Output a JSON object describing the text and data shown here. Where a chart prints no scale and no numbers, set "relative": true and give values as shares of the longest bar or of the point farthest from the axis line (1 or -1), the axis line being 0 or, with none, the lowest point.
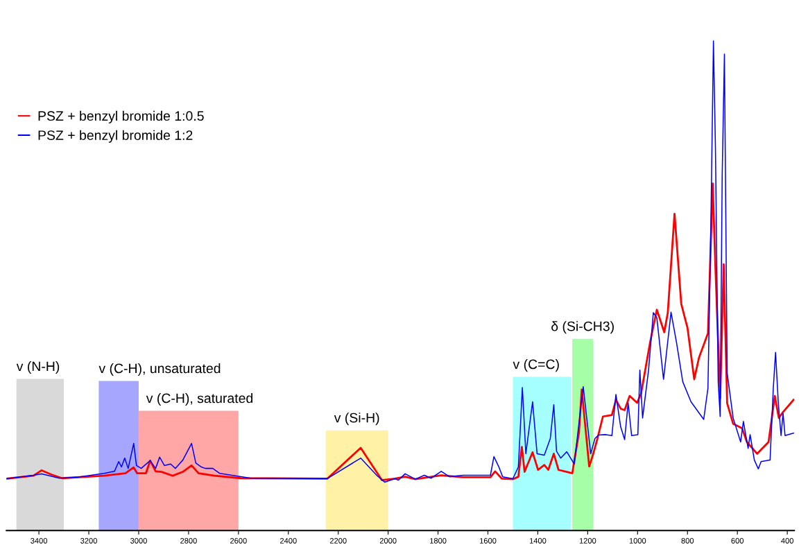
{
  "chart_data": {
    "type": "line",
    "relative": true,
    "xlim": [
      3530,
      372
    ],
    "xticks": [
      3400,
      3200,
      3000,
      2800,
      2600,
      2400,
      2200,
      2000,
      1800,
      1600,
      1400,
      1200,
      1000,
      800,
      600,
      400
    ],
    "grid": false,
    "legend": "top left",
    "marker": "none",
    "line_style": "solid",
    "bands": [
      {
        "axis": "x",
        "from": 3490,
        "to": 3300,
        "label": "v (N-H)",
        "color": "#d9d9d9"
      },
      {
        "axis": "x",
        "from": 3160,
        "to": 3000,
        "label": "v (C-H), unsaturated",
        "color": "#a6a6ff"
      },
      {
        "axis": "x",
        "from": 3000,
        "to": 2600,
        "label": "v (C-H), saturated",
        "color": "#ffa6a6"
      },
      {
        "axis": "x",
        "from": 2250,
        "to": 2000,
        "label": "v (Si-H)",
        "color": "#fff2a6"
      },
      {
        "axis": "x",
        "from": 1500,
        "to": 1268,
        "label": "v (C=C)",
        "color": "#a6ffff"
      },
      {
        "axis": "x",
        "from": 1262,
        "to": 1178,
        "label": "δ (Si-CH3)",
        "color": "#a6ffa6"
      }
    ],
    "series": [
      {
        "name": "PSZ + benzyl bromide 1:0.5",
        "color": "#ff0000",
        "x": [
          3530,
          3422,
          3389,
          3348,
          3307,
          3138,
          3053,
          3020,
          3006,
          2971,
          2954,
          2932,
          2908,
          2864,
          2823,
          2788,
          2760,
          2697,
          2591,
          2244,
          2110,
          2025,
          1973,
          1932,
          1891,
          1787,
          1699,
          1590,
          1571,
          1544,
          1500,
          1478,
          1464,
          1453,
          1421,
          1399,
          1374,
          1358,
          1336,
          1317,
          1284,
          1262,
          1235,
          1224,
          1194,
          1180,
          1161,
          1139,
          1103,
          1087,
          1068,
          1052,
          1032,
          1002,
          986,
          950,
          923,
          893,
          879,
          852,
          825,
          800,
          773,
          754,
          718,
          699,
          688,
          669,
          655,
          641,
          617,
          581,
          562,
          521,
          475,
          450,
          434,
          417,
          375
        ],
        "values": [
          0.106,
          0.112,
          0.123,
          0.114,
          0.107,
          0.112,
          0.117,
          0.129,
          0.117,
          0.117,
          0.143,
          0.121,
          0.12,
          0.112,
          0.12,
          0.133,
          0.117,
          0.112,
          0.107,
          0.106,
          0.169,
          0.103,
          0.106,
          0.11,
          0.105,
          0.113,
          0.109,
          0.109,
          0.121,
          0.106,
          0.105,
          0.11,
          0.171,
          0.12,
          0.16,
          0.124,
          0.134,
          0.124,
          0.157,
          0.124,
          0.12,
          0.117,
          0.2,
          0.288,
          0.131,
          0.153,
          0.188,
          0.233,
          0.236,
          0.267,
          0.249,
          0.246,
          0.275,
          0.261,
          0.28,
          0.384,
          0.451,
          0.405,
          0.445,
          0.647,
          0.463,
          0.414,
          0.309,
          0.353,
          0.403,
          0.709,
          0.537,
          0.27,
          0.544,
          0.26,
          0.218,
          0.209,
          0.181,
          0.157,
          0.181,
          0.275,
          0.23,
          0.242,
          0.267
        ]
      },
      {
        "name": "PSZ + benzyl bromide 1:2",
        "color": "#0000ff",
        "x": [
          3530,
          3422,
          3389,
          3318,
          3244,
          3138,
          3097,
          3080,
          3069,
          3056,
          3042,
          3020,
          3009,
          2990,
          2954,
          2932,
          2916,
          2897,
          2872,
          2853,
          2823,
          2788,
          2771,
          2749,
          2733,
          2703,
          2676,
          2613,
          2550,
          2244,
          2110,
          2044,
          2014,
          1973,
          1959,
          1932,
          1891,
          1855,
          1828,
          1787,
          1754,
          1699,
          1590,
          1576,
          1557,
          1541,
          1500,
          1478,
          1462,
          1448,
          1421,
          1403,
          1374,
          1350,
          1336,
          1325,
          1308,
          1284,
          1254,
          1218,
          1188,
          1171,
          1157,
          1128,
          1103,
          1087,
          1068,
          1052,
          1038,
          1024,
          999,
          991,
          980,
          956,
          937,
          923,
          896,
          866,
          844,
          819,
          786,
          735,
          718,
          707,
          696,
          688,
          677,
          669,
          661,
          652,
          641,
          617,
          587,
          576,
          557,
          549,
          532,
          516,
          505,
          469,
          456,
          447,
          436,
          425,
          417,
          409,
          375
        ],
        "values": [
          0.106,
          0.113,
          0.116,
          0.107,
          0.109,
          0.117,
          0.121,
          0.141,
          0.13,
          0.148,
          0.127,
          0.178,
          0.133,
          0.127,
          0.143,
          0.127,
          0.15,
          0.133,
          0.136,
          0.127,
          0.144,
          0.178,
          0.138,
          0.13,
          0.127,
          0.127,
          0.117,
          0.112,
          0.107,
          0.106,
          0.148,
          0.112,
          0.099,
          0.106,
          0.103,
          0.116,
          0.105,
          0.113,
          0.107,
          0.121,
          0.11,
          0.113,
          0.113,
          0.151,
          0.131,
          0.11,
          0.106,
          0.13,
          0.292,
          0.157,
          0.263,
          0.157,
          0.154,
          0.188,
          0.257,
          0.162,
          0.148,
          0.161,
          0.136,
          0.294,
          0.157,
          0.188,
          0.195,
          0.196,
          0.194,
          0.278,
          0.212,
          0.186,
          0.261,
          0.194,
          0.196,
          0.328,
          0.23,
          0.328,
          0.445,
          0.435,
          0.309,
          0.446,
          0.384,
          0.304,
          0.263,
          0.227,
          0.291,
          0.599,
          1.0,
          0.782,
          0.304,
          0.233,
          0.722,
          0.973,
          0.322,
          0.23,
          0.181,
          0.223,
          0.168,
          0.196,
          0.144,
          0.126,
          0.141,
          0.144,
          0.291,
          0.364,
          0.261,
          0.194,
          0.239,
          0.194,
          0.199
        ]
      }
    ]
  }
}
